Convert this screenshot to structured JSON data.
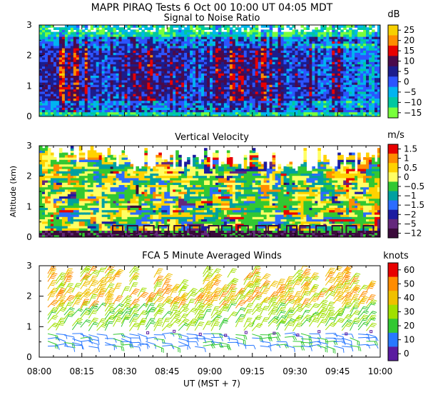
{
  "figure": {
    "header": "MAPR PIRAQ Tests   6 Oct 00   10:00 UT   04:05   MDT",
    "xlabel": "UT  (MST + 7)",
    "ylabel": "Altitude (km)",
    "x_ticks": [
      "08:00",
      "08:15",
      "08:30",
      "08:45",
      "09:00",
      "09:15",
      "09:30",
      "09:45",
      "10:00"
    ]
  },
  "chart_data": [
    {
      "type": "heatmap",
      "title": "Signal to Noise Ratio",
      "units": "dB",
      "xlim": [
        "08:00",
        "10:00"
      ],
      "ylim": [
        0,
        3
      ],
      "y_ticks": [
        "0",
        "1",
        "2",
        "3"
      ],
      "colorbar": {
        "labels": [
          "25",
          "20",
          "15",
          "10",
          "5",
          "0",
          "−5",
          "−10",
          "−15"
        ],
        "colors": [
          "#f7d000",
          "#ff8c00",
          "#e80000",
          "#4a0a4a",
          "#1c1c8c",
          "#2c54ff",
          "#00b4f0",
          "#00c8a0",
          "#78ff3c"
        ]
      },
      "description_levels": "mostly 0 to 15 dB between 0.5 and 2.5 km, low values (-10 to -15 dB) near surface and above 2.5 km"
    },
    {
      "type": "heatmap",
      "title": "Vertical Velocity",
      "units": "m/s",
      "xlim": [
        "08:00",
        "10:00"
      ],
      "ylim": [
        0,
        3
      ],
      "y_ticks": [
        "0",
        "1",
        "2",
        "3"
      ],
      "colorbar": {
        "labels": [
          "1.5",
          "1",
          "0.5",
          "0",
          "−0.5",
          "−1",
          "−1.5",
          "−2",
          "−5",
          "−12"
        ],
        "colors": [
          "#e80000",
          "#ff8c00",
          "#ffd200",
          "#ffff64",
          "#32c832",
          "#00a0a0",
          "#2c6cff",
          "#1c1ca0",
          "#64287c",
          "#3a0a3a"
        ]
      }
    },
    {
      "type": "scatter",
      "subtype": "wind-barbs",
      "title": "FCA 5 Minute Averaged Winds",
      "units": "knots",
      "xlim": [
        "08:00",
        "10:00"
      ],
      "ylim": [
        0,
        3
      ],
      "y_ticks": [
        "0",
        "1",
        "2",
        "3"
      ],
      "colorbar": {
        "labels": [
          "60",
          "50",
          "40",
          "30",
          "20",
          "10",
          "0"
        ],
        "colors": [
          "#e80000",
          "#ff8c00",
          "#f0c000",
          "#a0e000",
          "#32c832",
          "#2878ff",
          "#5a1aa0"
        ]
      }
    }
  ]
}
